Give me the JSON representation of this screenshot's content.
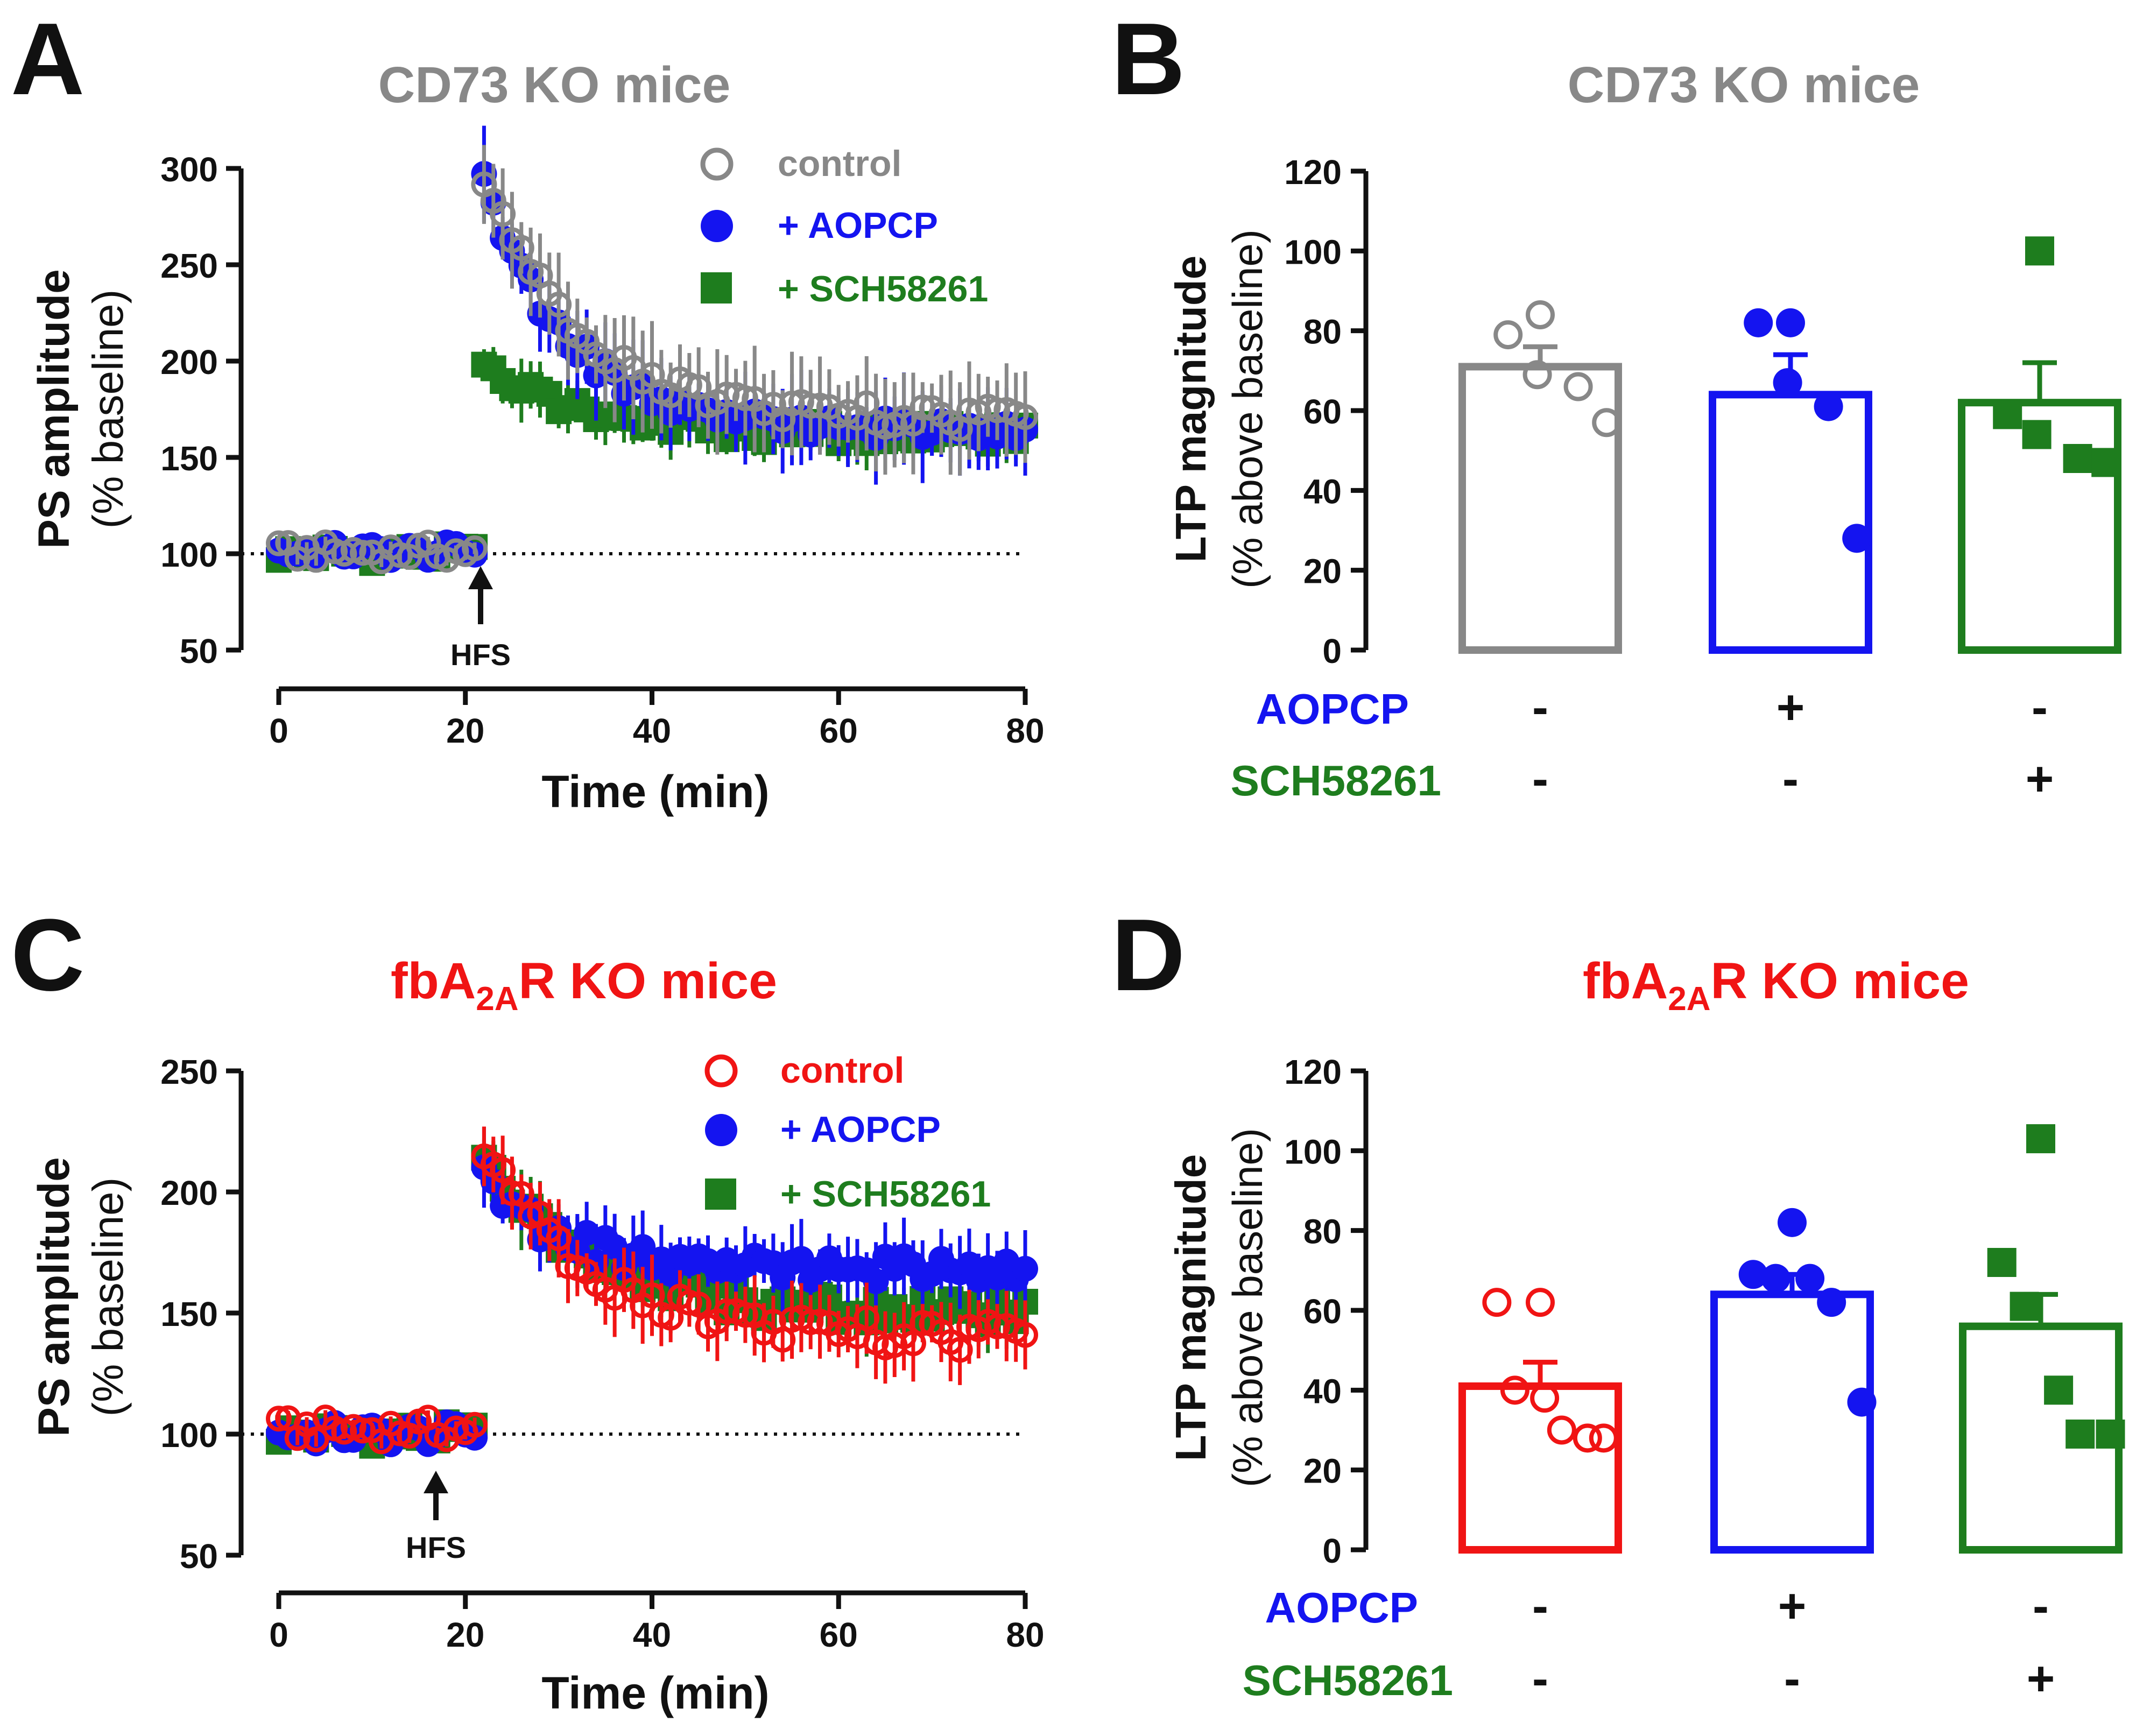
{
  "colors": {
    "gray": "#888888",
    "blue": "#1414f0",
    "green": "#1e7d1e",
    "red": "#f01414",
    "black": "#111111"
  },
  "panels": {
    "A": {
      "letter": "A",
      "title": "CD73 KO mice",
      "title_color": "#888888",
      "ylabel1": "PS amplitude",
      "ylabel2": "(% baseline)",
      "xlabel": "Time (min)",
      "hfs_label": "HFS",
      "legend": [
        "control",
        "+ AOPCP",
        "+ SCH58261"
      ]
    },
    "B": {
      "letter": "B",
      "title": "CD73 KO mice",
      "title_color": "#888888",
      "ylabel1": "LTP magnitude",
      "ylabel2": "(% above baseline)",
      "row1_label": "AOPCP",
      "row2_label": "SCH58261",
      "row1_signs": [
        "-",
        "+",
        "-"
      ],
      "row2_signs": [
        "-",
        "-",
        "+"
      ]
    },
    "C": {
      "letter": "C",
      "title_pre": "fbA",
      "title_sub": "2A",
      "title_post": "R KO mice",
      "title_color": "#f01414",
      "ylabel1": "PS amplitude",
      "ylabel2": "(% baseline)",
      "xlabel": "Time (min)",
      "hfs_label": "HFS",
      "legend": [
        "control",
        "+ AOPCP",
        "+ SCH58261"
      ]
    },
    "D": {
      "letter": "D",
      "title_pre": "fbA",
      "title_sub": "2A",
      "title_post": "R KO mice",
      "title_color": "#f01414",
      "ylabel1": "LTP magnitude",
      "ylabel2": "(% above baseline)",
      "row1_label": "AOPCP",
      "row2_label": "SCH58261",
      "row1_signs": [
        "-",
        "+",
        "-"
      ],
      "row2_signs": [
        "-",
        "-",
        "+"
      ]
    }
  },
  "chart_data": [
    {
      "id": "A",
      "type": "scatter",
      "title": "CD73 KO mice",
      "xlabel": "Time (min)",
      "ylabel": "PS amplitude (% baseline)",
      "xlim": [
        0,
        80
      ],
      "ylim": [
        50,
        300
      ],
      "xticks": [
        0,
        20,
        40,
        60,
        80
      ],
      "yticks": [
        50,
        100,
        150,
        200,
        250,
        300
      ],
      "baseline": 100,
      "hfs_time": 22,
      "series": [
        {
          "name": "+ SCH58261",
          "marker": "square",
          "color": "#1e7d1e",
          "baseline_value": 100,
          "post": {
            "start": 22,
            "end": 80,
            "peak": 202,
            "plateau": 162,
            "tau": 9,
            "err": 12
          }
        },
        {
          "name": "+ AOPCP",
          "marker": "filled-circle",
          "color": "#1414f0",
          "baseline_value": 101,
          "post": {
            "start": 22,
            "end": 80,
            "peak": 292,
            "plateau": 164,
            "tau": 9,
            "err": 18
          }
        },
        {
          "name": "control",
          "marker": "open-circle",
          "color": "#888888",
          "baseline_value": 101,
          "post": {
            "start": 22,
            "end": 80,
            "peak": 295,
            "plateau": 170,
            "tau": 10,
            "err": 20
          }
        }
      ]
    },
    {
      "id": "B",
      "type": "bar",
      "title": "CD73 KO mice",
      "ylabel": "LTP magnitude (% above baseline)",
      "ylim": [
        0,
        120
      ],
      "yticks": [
        0,
        20,
        40,
        60,
        80,
        100,
        120
      ],
      "groups": [
        {
          "name": "control",
          "color": "#888888",
          "marker": "open-circle",
          "mean": 71,
          "sem": 5,
          "points": [
            84,
            79,
            69,
            66,
            57
          ]
        },
        {
          "name": "+ AOPCP",
          "color": "#1414f0",
          "marker": "filled-circle",
          "mean": 64,
          "sem": 10,
          "points": [
            82,
            82,
            67,
            61,
            28
          ]
        },
        {
          "name": "+ SCH58261",
          "color": "#1e7d1e",
          "marker": "square",
          "mean": 62,
          "sem": 10,
          "points": [
            100,
            59,
            54,
            48,
            47
          ]
        }
      ]
    },
    {
      "id": "C",
      "type": "scatter",
      "title": "fbA2AR KO mice",
      "xlabel": "Time (min)",
      "ylabel": "PS amplitude (% baseline)",
      "xlim": [
        0,
        80
      ],
      "ylim": [
        50,
        250
      ],
      "xticks": [
        0,
        20,
        40,
        60,
        80
      ],
      "yticks": [
        50,
        100,
        150,
        200,
        250
      ],
      "baseline": 100,
      "hfs_time": 17,
      "series": [
        {
          "name": "+ SCH58261",
          "marker": "square",
          "color": "#1e7d1e",
          "baseline_value": 100,
          "post": {
            "start": 22,
            "end": 80,
            "peak": 218,
            "plateau": 150,
            "tau": 10,
            "err": 12
          }
        },
        {
          "name": "+ AOPCP",
          "marker": "filled-circle",
          "color": "#1414f0",
          "baseline_value": 100,
          "post": {
            "start": 22,
            "end": 80,
            "peak": 205,
            "plateau": 168,
            "tau": 8,
            "err": 12
          }
        },
        {
          "name": "control",
          "marker": "open-circle",
          "color": "#f01414",
          "baseline_value": 102,
          "post": {
            "start": 22,
            "end": 80,
            "peak": 218,
            "plateau": 140,
            "tau": 11,
            "err": 12
          }
        }
      ]
    },
    {
      "id": "D",
      "type": "bar",
      "title": "fbA2AR KO mice",
      "ylabel": "LTP magnitude (% above baseline)",
      "ylim": [
        0,
        120
      ],
      "yticks": [
        0,
        20,
        40,
        60,
        80,
        100,
        120
      ],
      "groups": [
        {
          "name": "control",
          "color": "#f01414",
          "marker": "open-circle",
          "mean": 41,
          "sem": 6,
          "points": [
            62,
            62,
            40,
            38,
            30,
            28,
            28
          ]
        },
        {
          "name": "+ AOPCP",
          "color": "#1414f0",
          "marker": "filled-circle",
          "mean": 64,
          "sem": 5,
          "points": [
            82,
            69,
            68,
            68,
            62,
            37
          ]
        },
        {
          "name": "+ SCH58261",
          "color": "#1e7d1e",
          "marker": "square",
          "mean": 56,
          "sem": 8,
          "points": [
            103,
            72,
            61,
            40,
            29,
            29
          ]
        }
      ]
    }
  ]
}
